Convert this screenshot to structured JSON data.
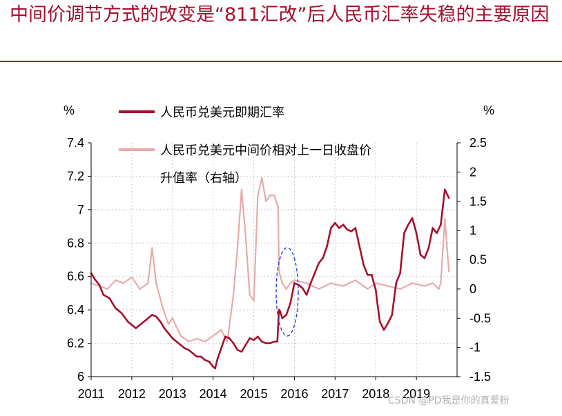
{
  "header": {
    "title": "中间价调节方式的改变是“811汇改”后人民币汇率失稳的主要原因"
  },
  "watermark": "CSDN @PD我是你的真爱粉",
  "colors": {
    "accent": "#a50f2d",
    "spot": "#a50f2d",
    "fix": "#e8aaaa",
    "highlight": "#2b3fd6"
  },
  "chart_data": {
    "type": "line",
    "title": "",
    "ylabel_left": "%",
    "ylabel_right": "%",
    "x_ticks": [
      "2011",
      "2012",
      "2013",
      "2014",
      "2015",
      "2016",
      "2017",
      "2018",
      "2019"
    ],
    "left_ticks": [
      "7.4",
      "7.2",
      "7",
      "6.8",
      "6.6",
      "6.4",
      "6.2",
      "6"
    ],
    "right_ticks": [
      "2.5",
      "2",
      "1.5",
      "1",
      "0.5",
      "0",
      "-0.5",
      "-1",
      "-1.5"
    ],
    "ylim_left": [
      6,
      7.4
    ],
    "ylim_right": [
      -1.5,
      2.5
    ],
    "xlim": [
      2011,
      2020.0
    ],
    "grid": "dotted",
    "legend": {
      "spot": "人民币兑美元即期汇率",
      "fix_line1": "人民币兑美元中间价相对上一日收盘价",
      "fix_line2": "升值率（右轴）"
    },
    "series": [
      {
        "name": "人民币兑美元即期汇率",
        "axis": "left",
        "x": [
          2011.0,
          2011.1,
          2011.2,
          2011.3,
          2011.45,
          2011.6,
          2011.75,
          2011.9,
          2012.0,
          2012.1,
          2012.2,
          2012.35,
          2012.5,
          2012.6,
          2012.7,
          2012.8,
          2012.9,
          2013.0,
          2013.1,
          2013.2,
          2013.3,
          2013.4,
          2013.5,
          2013.6,
          2013.7,
          2013.8,
          2013.9,
          2014.0,
          2014.05,
          2014.1,
          2014.2,
          2014.3,
          2014.4,
          2014.5,
          2014.6,
          2014.7,
          2014.8,
          2014.9,
          2015.0,
          2015.1,
          2015.2,
          2015.3,
          2015.4,
          2015.5,
          2015.58,
          2015.62,
          2015.65,
          2015.7,
          2015.8,
          2015.9,
          2016.0,
          2016.1,
          2016.2,
          2016.3,
          2016.4,
          2016.5,
          2016.6,
          2016.7,
          2016.8,
          2016.9,
          2017.0,
          2017.1,
          2017.2,
          2017.3,
          2017.4,
          2017.5,
          2017.6,
          2017.7,
          2017.8,
          2017.9,
          2018.0,
          2018.05,
          2018.1,
          2018.2,
          2018.3,
          2018.4,
          2018.5,
          2018.6,
          2018.7,
          2018.8,
          2018.9,
          2019.0,
          2019.1,
          2019.2,
          2019.3,
          2019.4,
          2019.5,
          2019.6,
          2019.7,
          2019.8
        ],
        "values": [
          6.62,
          6.58,
          6.55,
          6.49,
          6.47,
          6.41,
          6.38,
          6.33,
          6.31,
          6.29,
          6.31,
          6.34,
          6.37,
          6.36,
          6.33,
          6.29,
          6.26,
          6.23,
          6.21,
          6.19,
          6.17,
          6.16,
          6.14,
          6.12,
          6.12,
          6.1,
          6.09,
          6.06,
          6.05,
          6.1,
          6.17,
          6.24,
          6.23,
          6.2,
          6.16,
          6.15,
          6.19,
          6.23,
          6.22,
          6.24,
          6.21,
          6.2,
          6.2,
          6.21,
          6.21,
          6.4,
          6.39,
          6.35,
          6.37,
          6.44,
          6.56,
          6.55,
          6.53,
          6.49,
          6.56,
          6.62,
          6.68,
          6.71,
          6.78,
          6.89,
          6.92,
          6.89,
          6.91,
          6.88,
          6.87,
          6.89,
          6.78,
          6.67,
          6.61,
          6.61,
          6.52,
          6.42,
          6.33,
          6.28,
          6.32,
          6.37,
          6.56,
          6.62,
          6.86,
          6.91,
          6.95,
          6.86,
          6.73,
          6.71,
          6.77,
          6.89,
          6.86,
          6.91,
          7.12,
          7.07
        ]
      },
      {
        "name": "人民币兑美元中间价相对上一日收盘价升值率（右轴）",
        "axis": "right",
        "x": [
          2011.0,
          2011.2,
          2011.4,
          2011.6,
          2011.8,
          2012.0,
          2012.2,
          2012.4,
          2012.5,
          2012.6,
          2012.75,
          2012.9,
          2013.0,
          2013.2,
          2013.4,
          2013.6,
          2013.8,
          2014.0,
          2014.2,
          2014.35,
          2014.5,
          2014.6,
          2014.7,
          2014.8,
          2014.9,
          2015.0,
          2015.1,
          2015.2,
          2015.3,
          2015.4,
          2015.5,
          2015.6,
          2015.62,
          2015.7,
          2015.8,
          2015.9,
          2016.0,
          2016.3,
          2016.6,
          2016.9,
          2017.2,
          2017.5,
          2017.8,
          2018.0,
          2018.3,
          2018.6,
          2018.9,
          2019.2,
          2019.4,
          2019.55,
          2019.6,
          2019.7,
          2019.8
        ],
        "values": [
          0.1,
          0.05,
          0.0,
          0.15,
          0.1,
          0.2,
          0.0,
          0.1,
          0.7,
          0.1,
          -0.3,
          -0.6,
          -0.5,
          -0.8,
          -0.9,
          -0.85,
          -0.9,
          -0.8,
          -0.7,
          -0.9,
          -0.1,
          0.7,
          1.7,
          0.9,
          -0.1,
          -0.2,
          1.6,
          1.9,
          1.5,
          1.6,
          1.6,
          1.4,
          0.3,
          0.1,
          0.0,
          0.1,
          0.15,
          0.1,
          0.0,
          0.1,
          0.05,
          0.15,
          0.0,
          0.1,
          0.05,
          0.0,
          0.1,
          0.05,
          0.1,
          0.0,
          0.1,
          1.2,
          0.3
        ]
      }
    ]
  }
}
